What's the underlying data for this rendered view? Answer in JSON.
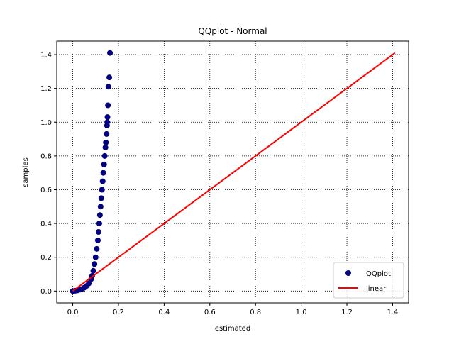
{
  "chart_data": {
    "type": "scatter",
    "title": "QQplot - Normal",
    "xlabel": "estimated",
    "ylabel": "samples",
    "xlim": [
      -0.07,
      1.47
    ],
    "ylim": [
      -0.07,
      1.48
    ],
    "xticks": [
      0.0,
      0.2,
      0.4,
      0.6,
      0.8,
      1.0,
      1.2,
      1.4
    ],
    "yticks": [
      0.0,
      0.2,
      0.4,
      0.6,
      0.8,
      1.0,
      1.2,
      1.4
    ],
    "xtick_labels": [
      "0.0",
      "0.2",
      "0.4",
      "0.6",
      "0.8",
      "1.0",
      "1.2",
      "1.4"
    ],
    "ytick_labels": [
      "0.0",
      "0.2",
      "0.4",
      "0.6",
      "0.8",
      "1.0",
      "1.2",
      "1.4"
    ],
    "grid": true,
    "legend_position": "bottom-right",
    "series": [
      {
        "name": "QQplot",
        "kind": "scatter",
        "color": "#000080",
        "points": [
          [
            0.0,
            0.0
          ],
          [
            0.01,
            0.002
          ],
          [
            0.02,
            0.004
          ],
          [
            0.03,
            0.008
          ],
          [
            0.04,
            0.012
          ],
          [
            0.05,
            0.02
          ],
          [
            0.06,
            0.03
          ],
          [
            0.07,
            0.045
          ],
          [
            0.08,
            0.07
          ],
          [
            0.085,
            0.09
          ],
          [
            0.09,
            0.12
          ],
          [
            0.095,
            0.16
          ],
          [
            0.1,
            0.2
          ],
          [
            0.105,
            0.25
          ],
          [
            0.11,
            0.3
          ],
          [
            0.113,
            0.35
          ],
          [
            0.116,
            0.4
          ],
          [
            0.119,
            0.45
          ],
          [
            0.122,
            0.5
          ],
          [
            0.125,
            0.55
          ],
          [
            0.128,
            0.6
          ],
          [
            0.131,
            0.65
          ],
          [
            0.134,
            0.7
          ],
          [
            0.137,
            0.75
          ],
          [
            0.14,
            0.8
          ],
          [
            0.143,
            0.85
          ],
          [
            0.145,
            0.88
          ],
          [
            0.148,
            0.93
          ],
          [
            0.15,
            0.98
          ],
          [
            0.151,
            1.0
          ],
          [
            0.152,
            1.03
          ],
          [
            0.154,
            1.1
          ],
          [
            0.156,
            1.21
          ],
          [
            0.16,
            1.265
          ],
          [
            0.163,
            1.41
          ]
        ]
      },
      {
        "name": "linear",
        "kind": "line",
        "color": "#ff0000",
        "points": [
          [
            0.0,
            0.0
          ],
          [
            1.41,
            1.41
          ]
        ]
      }
    ]
  }
}
